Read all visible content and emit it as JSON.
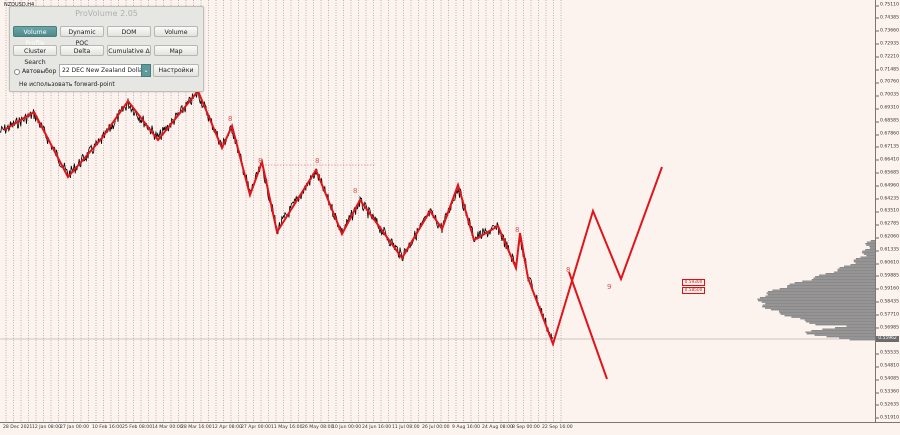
{
  "symbol": "NZDUSD,H4",
  "panel": {
    "title": "ProVolume 2.05",
    "buttons": [
      "Volume Profile",
      "Dynamic POC",
      "DOM",
      "Volume",
      "Cluster Search",
      "Delta",
      "Cumulative Δ",
      "Map"
    ],
    "active_button": "Volume Profile",
    "auto_label": "Автовыбор",
    "instrument": "22 DEC New Zealand Dollar",
    "settings_label": "Настройки",
    "forward_label": "Не использовать forward-point"
  },
  "y_axis": {
    "ticks": [
      "0.75110",
      "0.74385",
      "0.73660",
      "0.72935",
      "0.72210",
      "0.71485",
      "0.70760",
      "0.70035",
      "0.69310",
      "0.68585",
      "0.67860",
      "0.67135",
      "0.66410",
      "0.65685",
      "0.64960",
      "0.64235",
      "0.63510",
      "0.62785",
      "0.62060",
      "0.61335",
      "0.60610",
      "0.59885",
      "0.59160",
      "0.58435",
      "0.57710",
      "0.56985",
      "0.56260",
      "0.55535",
      "0.54810",
      "0.54085",
      "0.53360",
      "0.52635",
      "0.51910"
    ],
    "current_price": "0.55962"
  },
  "x_axis": {
    "ticks": [
      "28 Dec 2021",
      "12 Jan 08:00",
      "27 Jan 00:00",
      "10 Feb 16:00",
      "25 Feb 08:00",
      "14 Mar 00:00",
      "28 Mar 16:00",
      "12 Apr 08:00",
      "27 Apr 00:00",
      "11 May 16:00",
      "26 May 08:00",
      "10 Jun 00:00",
      "24 Jun 16:00",
      "11 Jul 08:00",
      "26 Jul 00:00",
      "9 Aug 16:00",
      "24 Aug 08:00",
      "8 Sep 00:00",
      "22 Sep 16:00"
    ]
  },
  "wave_labels": [
    "8",
    "8",
    "8",
    "8",
    "8",
    "8",
    "9"
  ],
  "price_labels": [
    "0.59300",
    "0.58500"
  ],
  "colors": {
    "background": "#fdf3ee",
    "wave": "#e0141a",
    "candles": "#000000",
    "profile": "#8a8a8a",
    "accent": "#5b9b9b"
  }
}
